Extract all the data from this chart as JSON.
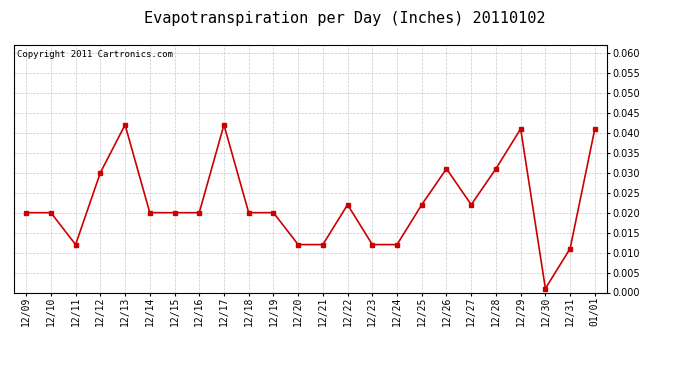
{
  "title": "Evapotranspiration per Day (Inches) 20110102",
  "copyright_text": "Copyright 2011 Cartronics.com",
  "labels": [
    "12/09",
    "12/10",
    "12/11",
    "12/12",
    "12/13",
    "12/14",
    "12/15",
    "12/16",
    "12/17",
    "12/18",
    "12/19",
    "12/20",
    "12/21",
    "12/22",
    "12/23",
    "12/24",
    "12/25",
    "12/26",
    "12/27",
    "12/28",
    "12/29",
    "12/30",
    "12/31",
    "01/01"
  ],
  "values": [
    0.02,
    0.02,
    0.012,
    0.03,
    0.042,
    0.02,
    0.02,
    0.02,
    0.042,
    0.02,
    0.02,
    0.012,
    0.012,
    0.022,
    0.012,
    0.012,
    0.022,
    0.031,
    0.022,
    0.031,
    0.041,
    0.001,
    0.011,
    0.041
  ],
  "line_color": "#cc0000",
  "marker": "s",
  "marker_size": 3,
  "background_color": "#ffffff",
  "plot_bg_color": "#ffffff",
  "grid_color": "#bbbbbb",
  "ylim": [
    0.0,
    0.062
  ],
  "ytick_values": [
    0.0,
    0.005,
    0.01,
    0.015,
    0.02,
    0.025,
    0.03,
    0.035,
    0.04,
    0.045,
    0.05,
    0.055,
    0.06
  ],
  "title_fontsize": 11,
  "tick_fontsize": 7,
  "copyright_fontsize": 6.5
}
